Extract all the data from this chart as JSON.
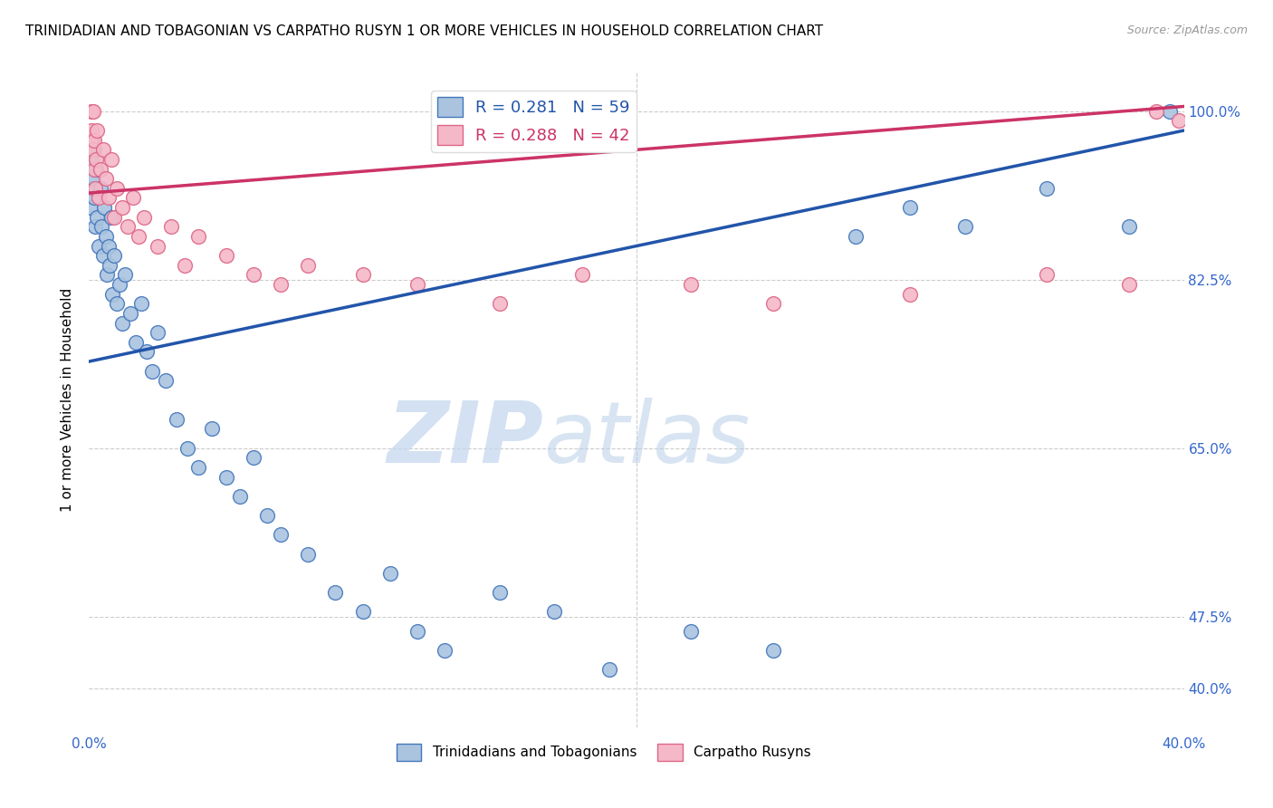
{
  "title": "TRINIDADIAN AND TOBAGONIAN VS CARPATHO RUSYN 1 OR MORE VEHICLES IN HOUSEHOLD CORRELATION CHART",
  "source": "Source: ZipAtlas.com",
  "ylabel": "1 or more Vehicles in Household",
  "ytick_vals": [
    40.0,
    47.5,
    65.0,
    82.5,
    100.0
  ],
  "ytick_labels": [
    "40.0%",
    "47.5%",
    "65.0%",
    "82.5%",
    "100.0%"
  ],
  "xmin": 0.0,
  "xmax": 40.0,
  "ymin": 36.0,
  "ymax": 104.0,
  "blue_R": 0.281,
  "blue_N": 59,
  "pink_R": 0.288,
  "pink_N": 42,
  "blue_color": "#aac4e0",
  "blue_edge_color": "#4477bb",
  "blue_line_color": "#2255aa",
  "pink_color": "#f5b8c8",
  "pink_edge_color": "#dd6688",
  "pink_line_color": "#cc3366",
  "legend_label_blue": "Trinidadians and Tobagonians",
  "legend_label_pink": "Carpatho Rusyns",
  "watermark_zip": "ZIP",
  "watermark_atlas": "atlas",
  "blue_scatter_x": [
    0.05,
    0.08,
    0.1,
    0.12,
    0.15,
    0.18,
    0.2,
    0.22,
    0.25,
    0.3,
    0.35,
    0.4,
    0.45,
    0.5,
    0.55,
    0.6,
    0.65,
    0.7,
    0.75,
    0.8,
    0.85,
    0.9,
    1.0,
    1.1,
    1.2,
    1.3,
    1.5,
    1.7,
    1.9,
    2.1,
    2.3,
    2.5,
    2.8,
    3.2,
    3.6,
    4.0,
    4.5,
    5.0,
    5.5,
    6.0,
    6.5,
    7.0,
    8.0,
    9.0,
    10.0,
    11.0,
    12.0,
    13.0,
    15.0,
    17.0,
    19.0,
    22.0,
    25.0,
    28.0,
    30.0,
    32.0,
    35.0,
    38.0,
    39.5
  ],
  "blue_scatter_y": [
    90.0,
    92.0,
    95.0,
    97.0,
    93.0,
    96.0,
    91.0,
    88.0,
    94.0,
    89.0,
    86.0,
    92.0,
    88.0,
    85.0,
    90.0,
    87.0,
    83.0,
    86.0,
    84.0,
    89.0,
    81.0,
    85.0,
    80.0,
    82.0,
    78.0,
    83.0,
    79.0,
    76.0,
    80.0,
    75.0,
    73.0,
    77.0,
    72.0,
    68.0,
    65.0,
    63.0,
    67.0,
    62.0,
    60.0,
    64.0,
    58.0,
    56.0,
    54.0,
    50.0,
    48.0,
    52.0,
    46.0,
    44.0,
    50.0,
    48.0,
    42.0,
    46.0,
    44.0,
    87.0,
    90.0,
    88.0,
    92.0,
    88.0,
    100.0
  ],
  "pink_scatter_x": [
    0.05,
    0.08,
    0.1,
    0.12,
    0.15,
    0.18,
    0.2,
    0.22,
    0.25,
    0.3,
    0.35,
    0.4,
    0.5,
    0.6,
    0.7,
    0.8,
    0.9,
    1.0,
    1.2,
    1.4,
    1.6,
    1.8,
    2.0,
    2.5,
    3.0,
    3.5,
    4.0,
    5.0,
    6.0,
    7.0,
    8.0,
    10.0,
    12.0,
    15.0,
    18.0,
    22.0,
    25.0,
    30.0,
    35.0,
    38.0,
    39.0,
    39.8
  ],
  "pink_scatter_y": [
    97.0,
    100.0,
    98.0,
    96.0,
    100.0,
    94.0,
    97.0,
    92.0,
    95.0,
    98.0,
    91.0,
    94.0,
    96.0,
    93.0,
    91.0,
    95.0,
    89.0,
    92.0,
    90.0,
    88.0,
    91.0,
    87.0,
    89.0,
    86.0,
    88.0,
    84.0,
    87.0,
    85.0,
    83.0,
    82.0,
    84.0,
    83.0,
    82.0,
    80.0,
    83.0,
    82.0,
    80.0,
    81.0,
    83.0,
    82.0,
    100.0,
    99.0
  ],
  "blue_line_x0": 0.0,
  "blue_line_x1": 40.0,
  "blue_line_y0": 74.0,
  "blue_line_y1": 98.0,
  "pink_line_x0": 0.0,
  "pink_line_x1": 40.0,
  "pink_line_y0": 91.5,
  "pink_line_y1": 100.5
}
